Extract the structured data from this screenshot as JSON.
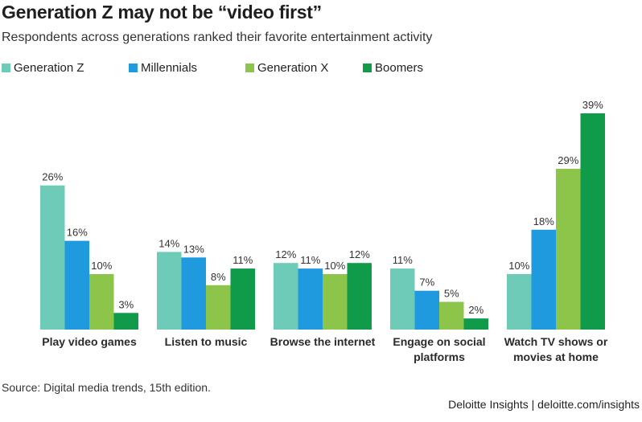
{
  "title": "Generation Z may not be “video first”",
  "subtitle": "Respondents across generations ranked their favorite entertainment activity",
  "source": "Source: Digital media trends, 15th edition.",
  "credit": "Deloitte Insights | deloitte.com/insights",
  "chart_data": {
    "type": "bar",
    "categories": [
      "Play video games",
      "Listen to music",
      "Browse the internet",
      "Engage on social platforms",
      "Watch TV shows or movies at home"
    ],
    "category_label_lines": [
      [
        "Play video games"
      ],
      [
        "Listen to music"
      ],
      [
        "Browse the internet"
      ],
      [
        "Engage on social",
        "platforms"
      ],
      [
        "Watch TV shows or",
        "movies at home"
      ]
    ],
    "series": [
      {
        "name": "Generation Z",
        "color": "#6DCBB7",
        "values": [
          26,
          14,
          12,
          11,
          10
        ]
      },
      {
        "name": "Millennials",
        "color": "#1F9ADF",
        "values": [
          16,
          13,
          11,
          7,
          18
        ]
      },
      {
        "name": "Generation X",
        "color": "#8DC54A",
        "values": [
          10,
          8,
          10,
          5,
          29
        ]
      },
      {
        "name": "Boomers",
        "color": "#0F9B4A",
        "values": [
          3,
          11,
          12,
          2,
          39
        ]
      }
    ],
    "value_suffix": "%",
    "ylim": [
      0,
      39
    ],
    "xlabel": "",
    "ylabel": "",
    "legend_position": "top-left",
    "grid": false
  }
}
